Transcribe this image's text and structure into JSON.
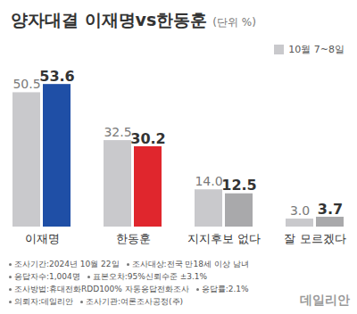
{
  "chart_data": {
    "type": "bar",
    "title": "양자대결 이재명vs한동훈",
    "subtitle": "(단위 %)",
    "categories": [
      "이재명",
      "한동훈",
      "지지후보 없다",
      "잘 모르겠다"
    ],
    "series": [
      {
        "name": "10월 7~8일",
        "color": "#c9c9cc",
        "values": [
          50.5,
          32.5,
          14.0,
          3.0
        ],
        "value_labels": [
          "50.5",
          "32.5",
          "14.0",
          "3.0"
        ]
      },
      {
        "colors": [
          "#1f4fa6",
          "#e0262d",
          "#a9a9ab",
          "#a9a9ab"
        ],
        "values": [
          53.6,
          30.2,
          12.5,
          3.7
        ],
        "value_labels": [
          "53.6",
          "30.2",
          "12.5",
          "3.7"
        ]
      }
    ],
    "data_labels": true,
    "tick_labels": "x",
    "legend": "top-right",
    "notes": [
      "조사기간:2024년 10월 22일",
      "조사대상:전국 만18세 이상 남녀",
      "응답자수:1,004명",
      "표본오차:95%신뢰수준 ±3.1%",
      "조사방법:휴대전화RDD100% 자동응답전화조사",
      "응답률:2.1%",
      "의뢰자:데일리안",
      "조사기관:여론조사공정(주)"
    ],
    "watermark": "데일리안"
  }
}
